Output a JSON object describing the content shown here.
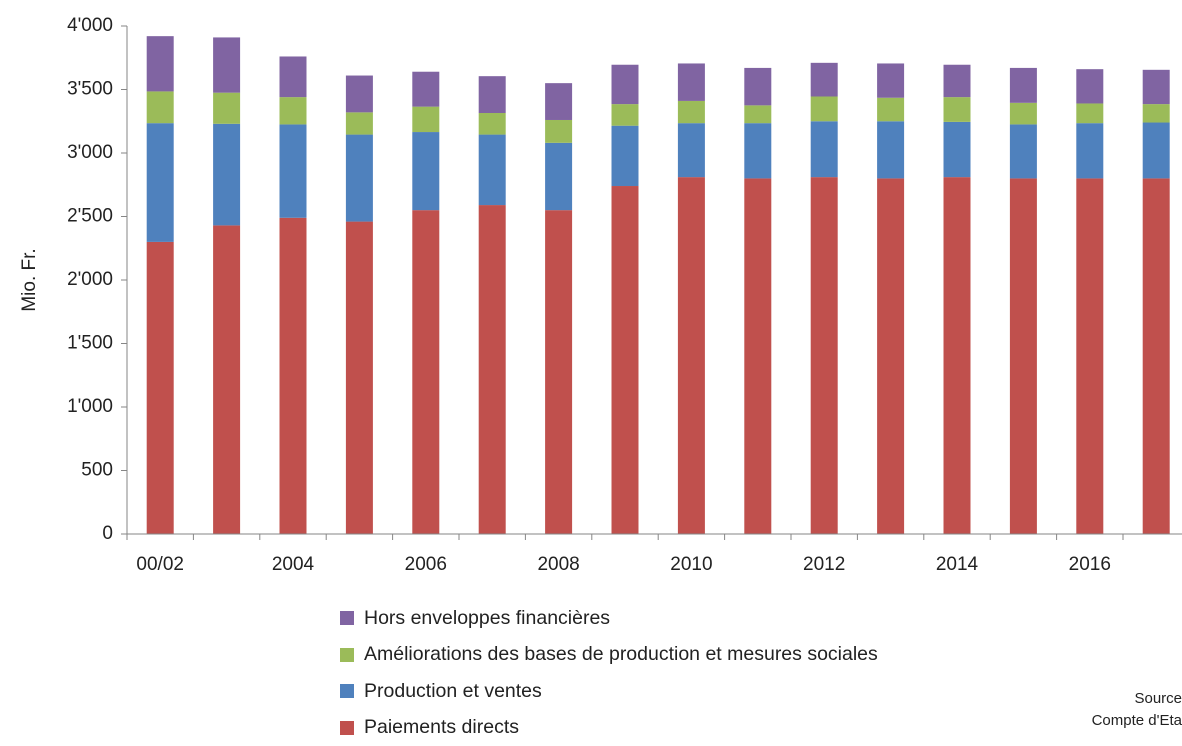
{
  "chart_data": {
    "type": "bar",
    "stacked": true,
    "ylabel": "Mio. Fr.",
    "ylim": [
      0,
      4000
    ],
    "yticks": [
      {
        "value": 0,
        "label": "0"
      },
      {
        "value": 500,
        "label": "500"
      },
      {
        "value": 1000,
        "label": "1'000"
      },
      {
        "value": 1500,
        "label": "1'500"
      },
      {
        "value": 2000,
        "label": "2'000"
      },
      {
        "value": 2500,
        "label": "2'500"
      },
      {
        "value": 3000,
        "label": "3'000"
      },
      {
        "value": 3500,
        "label": "3'500"
      },
      {
        "value": 4000,
        "label": "4'000"
      }
    ],
    "categories": [
      "00/02",
      "2003",
      "2004",
      "2005",
      "2006",
      "2007",
      "2008",
      "2009",
      "2010",
      "2011",
      "2012",
      "2013",
      "2014",
      "2015",
      "2016",
      "2017"
    ],
    "x_tick_labels": [
      "00/02",
      "",
      "2004",
      "",
      "2006",
      "",
      "2008",
      "",
      "2010",
      "",
      "2012",
      "",
      "2014",
      "",
      "2016",
      ""
    ],
    "grid": false,
    "legend_position": "bottom",
    "series": [
      {
        "name": "Paiements directs",
        "color": "#c0504d",
        "values": [
          2300,
          2430,
          2490,
          2460,
          2550,
          2590,
          2550,
          2740,
          2810,
          2800,
          2810,
          2800,
          2810,
          2800,
          2800,
          2800
        ]
      },
      {
        "name": "Production et ventes",
        "color": "#4f81bd",
        "values": [
          935,
          800,
          735,
          685,
          615,
          555,
          530,
          475,
          425,
          435,
          440,
          450,
          435,
          425,
          435,
          440
        ]
      },
      {
        "name": "Améliorations des bases de production et mesures sociales",
        "color": "#9bbb59",
        "values": [
          250,
          245,
          215,
          175,
          200,
          170,
          180,
          170,
          175,
          140,
          195,
          185,
          195,
          170,
          155,
          145
        ]
      },
      {
        "name": "Hors enveloppes financières",
        "color": "#8064a2",
        "values": [
          435,
          435,
          320,
          290,
          275,
          290,
          290,
          310,
          295,
          295,
          265,
          270,
          255,
          275,
          270,
          270
        ]
      }
    ],
    "legend_order": [
      "Hors enveloppes financières",
      "Améliorations des bases de production et mesures sociales",
      "Production et ventes",
      "Paiements directs"
    ]
  },
  "source": {
    "line1": "Source",
    "line2": "Compte d'Eta"
  }
}
